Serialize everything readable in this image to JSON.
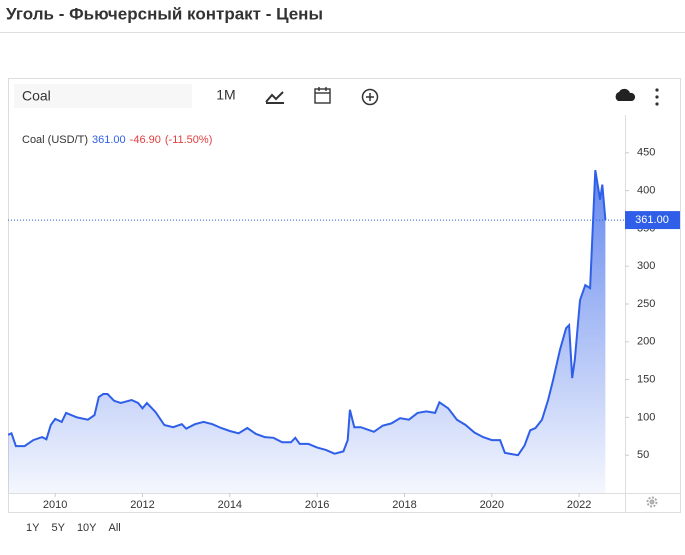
{
  "page_title": "Уголь - Фьючерсный контракт - Цены",
  "toolbar": {
    "search": "Coal",
    "interval": "1M"
  },
  "range_buttons": [
    "1Y",
    "5Y",
    "10Y",
    "All"
  ],
  "chart_data": {
    "type": "area",
    "legend": {
      "last": "361.00",
      "change": "-46.90",
      "change_pct": "(-11.50%)"
    },
    "x": [
      2008.92,
      2009.0,
      2009.1,
      2009.3,
      2009.5,
      2009.7,
      2009.8,
      2009.9,
      2010.0,
      2010.15,
      2010.25,
      2010.5,
      2010.75,
      2010.9,
      2011.0,
      2011.1,
      2011.2,
      2011.35,
      2011.5,
      2011.75,
      2011.9,
      2012.0,
      2012.1,
      2012.3,
      2012.5,
      2012.7,
      2012.9,
      2013.0,
      2013.2,
      2013.4,
      2013.6,
      2013.8,
      2014.0,
      2014.2,
      2014.4,
      2014.6,
      2014.8,
      2015.0,
      2015.2,
      2015.4,
      2015.5,
      2015.6,
      2015.8,
      2016.0,
      2016.2,
      2016.4,
      2016.6,
      2016.7,
      2016.75,
      2016.85,
      2017.0,
      2017.3,
      2017.5,
      2017.7,
      2017.9,
      2018.1,
      2018.3,
      2018.5,
      2018.7,
      2018.8,
      2019.0,
      2019.2,
      2019.4,
      2019.6,
      2019.8,
      2020.0,
      2020.19,
      2020.3,
      2020.6,
      2020.75,
      2020.88,
      2021.0,
      2021.15,
      2021.29,
      2021.4,
      2021.56,
      2021.7,
      2021.77,
      2021.84,
      2021.9,
      2022.02,
      2022.14,
      2022.25,
      2022.37,
      2022.48,
      2022.53,
      2022.6
    ],
    "series": [
      {
        "name": "Coal (USD/T)",
        "color": "#2f5fe8",
        "values": [
          77,
          79,
          62,
          62,
          70,
          74,
          71,
          90,
          98,
          94,
          106,
          100,
          97,
          103,
          127,
          131,
          131,
          122,
          119,
          123,
          119,
          112,
          119,
          107,
          90,
          87,
          91,
          85,
          91,
          94,
          91,
          86,
          82,
          79,
          86,
          78,
          74,
          73,
          67,
          67,
          73,
          65,
          65,
          60,
          57,
          52,
          55,
          70,
          110,
          87,
          87,
          81,
          89,
          92,
          99,
          97,
          106,
          108,
          106,
          120,
          112,
          97,
          90,
          80,
          74,
          70,
          70,
          53,
          50,
          63,
          83,
          86,
          97,
          123,
          149,
          189,
          218,
          222,
          152,
          176,
          255,
          275,
          271,
          427,
          388,
          408,
          361
        ]
      }
    ],
    "xlim": [
      2008.92,
      2023.05
    ],
    "xticks": [
      2010,
      2012,
      2014,
      2016,
      2018,
      2020,
      2022
    ],
    "ylim": [
      0,
      500
    ],
    "yticks": [
      50,
      100,
      150,
      200,
      250,
      300,
      350,
      400,
      450
    ]
  }
}
